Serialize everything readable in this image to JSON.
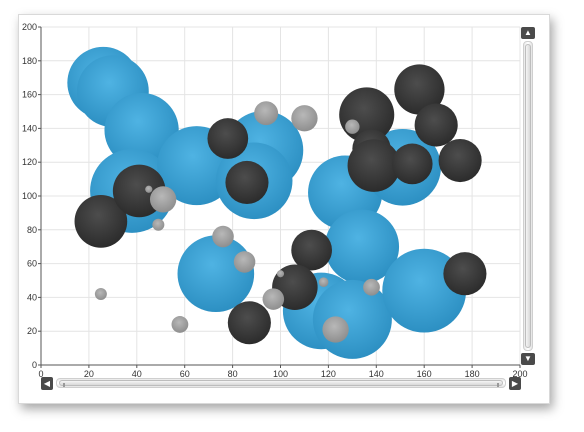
{
  "chart_data": {
    "type": "scatter",
    "variant": "bubble",
    "xlim": [
      0,
      200
    ],
    "ylim": [
      0,
      200
    ],
    "x_ticks": [
      "0",
      "20",
      "40",
      "60",
      "80",
      "100",
      "120",
      "140",
      "160",
      "180",
      "200"
    ],
    "y_ticks": [
      "0",
      "20",
      "40",
      "60",
      "80",
      "100",
      "120",
      "140",
      "160",
      "180",
      "200"
    ],
    "grid": true,
    "legend": "none",
    "series": [
      {
        "color": "#3399cc",
        "points": [
          {
            "x": 26,
            "y": 167,
            "r": 15
          },
          {
            "x": 30,
            "y": 162,
            "r": 15
          },
          {
            "x": 42,
            "y": 139,
            "r": 15.5
          },
          {
            "x": 38,
            "y": 103,
            "r": 17.5
          },
          {
            "x": 65,
            "y": 118,
            "r": 16.5
          },
          {
            "x": 93,
            "y": 127,
            "r": 16.5
          },
          {
            "x": 89,
            "y": 109,
            "r": 16
          },
          {
            "x": 127,
            "y": 102,
            "r": 15.5
          },
          {
            "x": 151,
            "y": 117,
            "r": 16
          },
          {
            "x": 134,
            "y": 70,
            "r": 15.5
          },
          {
            "x": 73,
            "y": 54,
            "r": 16
          },
          {
            "x": 117,
            "y": 32,
            "r": 16
          },
          {
            "x": 130,
            "y": 27,
            "r": 16.5
          },
          {
            "x": 160,
            "y": 44,
            "r": 17.5
          }
        ]
      },
      {
        "color": "#3a3a3a",
        "points": [
          {
            "x": 25,
            "y": 85,
            "r": 11
          },
          {
            "x": 41,
            "y": 103,
            "r": 11
          },
          {
            "x": 78,
            "y": 134,
            "r": 8.5
          },
          {
            "x": 86,
            "y": 108,
            "r": 9
          },
          {
            "x": 136,
            "y": 148,
            "r": 11.5
          },
          {
            "x": 138,
            "y": 128,
            "r": 8
          },
          {
            "x": 139,
            "y": 118,
            "r": 11
          },
          {
            "x": 155,
            "y": 119,
            "r": 8.5
          },
          {
            "x": 158,
            "y": 163,
            "r": 10.5
          },
          {
            "x": 165,
            "y": 142,
            "r": 9
          },
          {
            "x": 175,
            "y": 121,
            "r": 9
          },
          {
            "x": 113,
            "y": 68,
            "r": 8.5
          },
          {
            "x": 106,
            "y": 46,
            "r": 9.5
          },
          {
            "x": 87,
            "y": 25,
            "r": 9
          },
          {
            "x": 177,
            "y": 54,
            "r": 9
          }
        ]
      },
      {
        "color": "#9e9e9e",
        "points": [
          {
            "x": 94,
            "y": 149,
            "r": 5
          },
          {
            "x": 110,
            "y": 146,
            "r": 5.5
          },
          {
            "x": 130,
            "y": 141,
            "r": 3
          },
          {
            "x": 45,
            "y": 104,
            "r": 1.5
          },
          {
            "x": 51,
            "y": 98,
            "r": 5.5
          },
          {
            "x": 49,
            "y": 83,
            "r": 2.5
          },
          {
            "x": 76,
            "y": 76,
            "r": 4.5
          },
          {
            "x": 85,
            "y": 61,
            "r": 4.5
          },
          {
            "x": 100,
            "y": 54,
            "r": 1.5
          },
          {
            "x": 97,
            "y": 39,
            "r": 4.5
          },
          {
            "x": 118,
            "y": 49,
            "r": 2
          },
          {
            "x": 138,
            "y": 46,
            "r": 3.5
          },
          {
            "x": 58,
            "y": 24,
            "r": 3.5
          },
          {
            "x": 25,
            "y": 42,
            "r": 2.5
          },
          {
            "x": 123,
            "y": 21,
            "r": 5.5
          }
        ]
      }
    ]
  },
  "scrollbars": {
    "up_glyph": "▲",
    "down_glyph": "▼",
    "left_glyph": "◀",
    "right_glyph": "▶"
  }
}
